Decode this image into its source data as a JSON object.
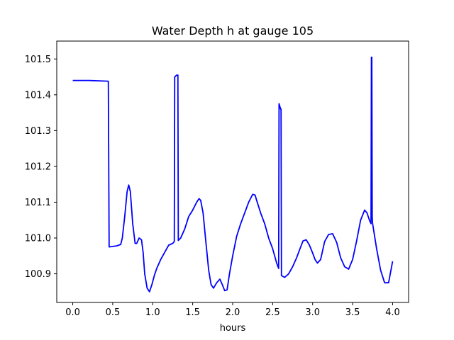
{
  "chart_data": {
    "type": "line",
    "title": "Water Depth h at gauge 105",
    "xlabel": "hours",
    "ylabel": "",
    "xlim": [
      -0.2,
      4.2
    ],
    "ylim": [
      100.82,
      101.55
    ],
    "x_ticks": [
      0.0,
      0.5,
      1.0,
      1.5,
      2.0,
      2.5,
      3.0,
      3.5,
      4.0
    ],
    "x_tick_labels": [
      "0.0",
      "0.5",
      "1.0",
      "1.5",
      "2.0",
      "2.5",
      "3.0",
      "3.5",
      "4.0"
    ],
    "y_ticks": [
      100.9,
      101.0,
      101.1,
      101.2,
      101.3,
      101.4,
      101.5
    ],
    "y_tick_labels": [
      "100.9",
      "101.0",
      "101.1",
      "101.2",
      "101.3",
      "101.4",
      "101.5"
    ],
    "grid": false,
    "legend": "none",
    "series": [
      {
        "color": "#0000ff",
        "x": [
          0.0,
          0.2,
          0.44,
          0.445,
          0.455,
          0.55,
          0.6,
          0.62,
          0.65,
          0.68,
          0.7,
          0.72,
          0.75,
          0.78,
          0.8,
          0.83,
          0.86,
          0.88,
          0.9,
          0.93,
          0.96,
          0.99,
          1.02,
          1.05,
          1.1,
          1.15,
          1.2,
          1.25,
          1.27,
          1.275,
          1.3,
          1.315,
          1.32,
          1.35,
          1.4,
          1.45,
          1.5,
          1.55,
          1.58,
          1.6,
          1.63,
          1.66,
          1.7,
          1.73,
          1.76,
          1.8,
          1.84,
          1.87,
          1.9,
          1.93,
          1.96,
          2.0,
          2.05,
          2.1,
          2.15,
          2.2,
          2.25,
          2.28,
          2.3,
          2.35,
          2.4,
          2.45,
          2.5,
          2.55,
          2.575,
          2.58,
          2.6,
          2.605,
          2.61,
          2.65,
          2.7,
          2.75,
          2.8,
          2.85,
          2.88,
          2.92,
          2.96,
          3.0,
          3.03,
          3.06,
          3.1,
          3.15,
          3.2,
          3.25,
          3.3,
          3.35,
          3.4,
          3.45,
          3.5,
          3.55,
          3.6,
          3.65,
          3.68,
          3.71,
          3.73,
          3.735,
          3.74,
          3.745,
          3.75,
          3.8,
          3.85,
          3.9,
          3.95,
          4.0
        ],
        "y": [
          101.44,
          101.44,
          101.438,
          101.438,
          100.975,
          100.978,
          100.982,
          101.0,
          101.06,
          101.13,
          101.148,
          101.13,
          101.04,
          100.985,
          100.985,
          101.0,
          100.995,
          100.96,
          100.9,
          100.86,
          100.85,
          100.87,
          100.895,
          100.915,
          100.94,
          100.96,
          100.98,
          100.985,
          100.99,
          101.45,
          101.455,
          101.455,
          100.993,
          101.0,
          101.025,
          101.06,
          101.078,
          101.1,
          101.11,
          101.105,
          101.07,
          101.0,
          100.91,
          100.87,
          100.86,
          100.875,
          100.885,
          100.87,
          100.853,
          100.855,
          100.9,
          100.95,
          101.005,
          101.04,
          101.07,
          101.1,
          101.122,
          101.12,
          101.105,
          101.07,
          101.04,
          101.0,
          100.97,
          100.93,
          100.915,
          101.375,
          101.36,
          101.36,
          100.895,
          100.89,
          100.9,
          100.92,
          100.945,
          100.975,
          100.992,
          100.995,
          100.98,
          100.958,
          100.94,
          100.93,
          100.94,
          100.99,
          101.01,
          101.012,
          100.988,
          100.945,
          100.92,
          100.913,
          100.94,
          100.992,
          101.05,
          101.078,
          101.07,
          101.05,
          101.04,
          101.505,
          101.505,
          101.06,
          101.04,
          100.97,
          100.91,
          100.875,
          100.875,
          100.935
        ]
      }
    ]
  }
}
